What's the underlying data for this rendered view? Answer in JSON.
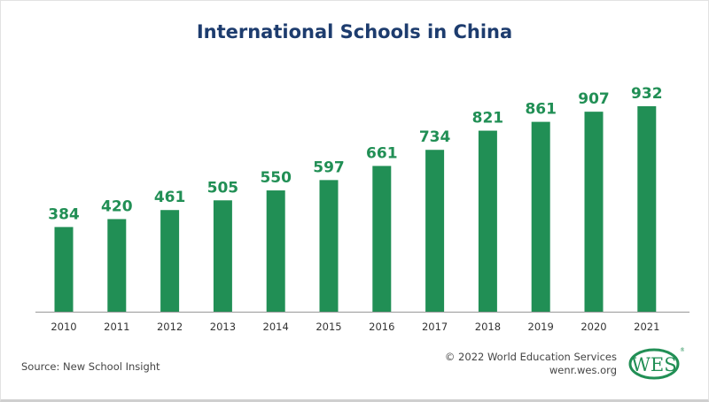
{
  "chart_data": {
    "type": "bar",
    "title": "International Schools in China",
    "categories": [
      "2010",
      "2011",
      "2012",
      "2013",
      "2014",
      "2015",
      "2016",
      "2017",
      "2018",
      "2019",
      "2020",
      "2021"
    ],
    "values": [
      384,
      420,
      461,
      505,
      550,
      597,
      661,
      734,
      821,
      861,
      907,
      932
    ],
    "ylim": [
      0,
      1000
    ],
    "grid": false,
    "data_labels": true,
    "colors": {
      "bar": "#218f55",
      "label": "#218f55",
      "title": "#1d3c6e"
    }
  },
  "footer": {
    "source": "Source: New School Insight",
    "copyright": "© 2022 World Education Services",
    "url": "wenr.wes.org",
    "logo": "WES"
  }
}
